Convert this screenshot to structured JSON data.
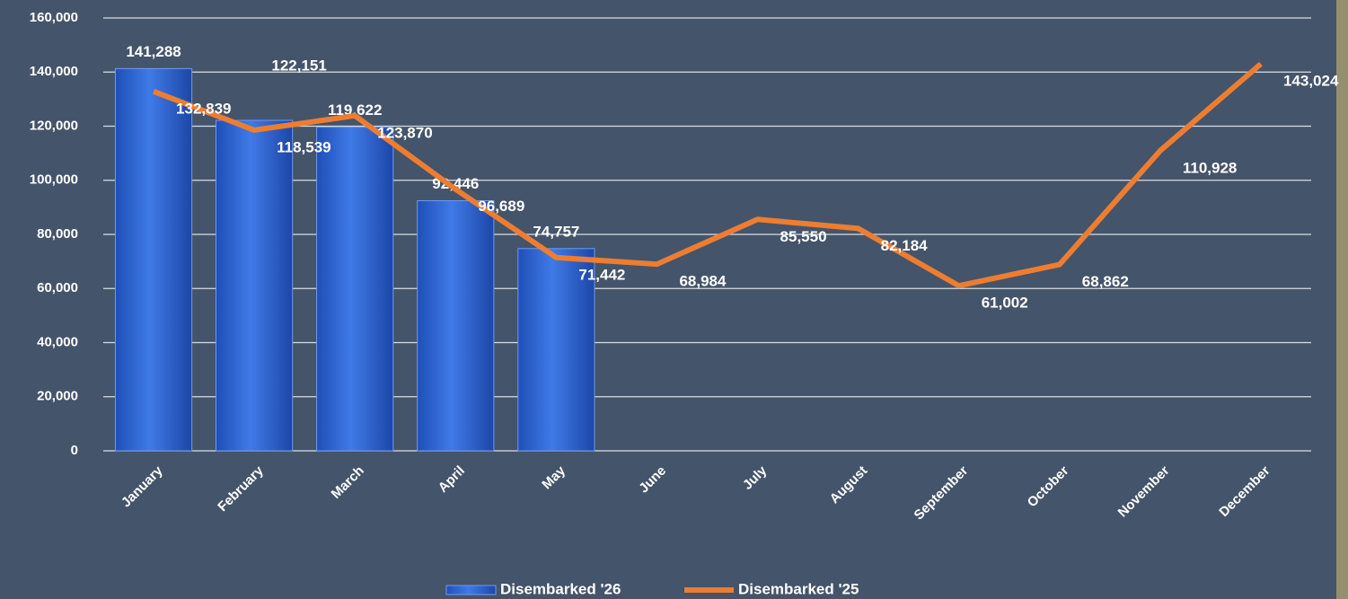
{
  "chart_data": {
    "type": "bar",
    "categories": [
      "January",
      "February",
      "March",
      "April",
      "May",
      "June",
      "July",
      "August",
      "September",
      "October",
      "November",
      "December"
    ],
    "series": [
      {
        "name": "Disembarked '26",
        "type": "bar",
        "color": "#3a70dc",
        "values": [
          141288,
          122151,
          119622,
          92446,
          74757,
          null,
          null,
          null,
          null,
          null,
          null,
          null
        ],
        "value_labels": [
          "141,288",
          "122,151",
          "119,622",
          "92,446",
          "74,757",
          null,
          null,
          null,
          null,
          null,
          null,
          null
        ]
      },
      {
        "name": "Disembarked '25",
        "type": "line",
        "color": "#ed7d31",
        "values": [
          132839,
          118539,
          123870,
          96689,
          71442,
          68984,
          85550,
          82184,
          61002,
          68862,
          110928,
          143024
        ],
        "value_labels": [
          "132,839",
          "118,539",
          "123,870",
          "96,689",
          "71,442",
          "68,984",
          "85,550",
          "82,184",
          "61,002",
          "68,862",
          "110,928",
          "143,024"
        ]
      }
    ],
    "ylim": [
      0,
      160000
    ],
    "yticks": [
      0,
      {
        "value": 20000,
        "label": "20,000"
      },
      {
        "value": 40000,
        "label": "40,000"
      },
      {
        "value": 60000,
        "label": "60,000"
      },
      {
        "value": 80000,
        "label": "80,000"
      },
      {
        "value": 100000,
        "label": "100,000"
      },
      {
        "value": 120000,
        "label": "120,000"
      },
      {
        "value": 140000,
        "label": "140,000"
      },
      {
        "value": 160000,
        "label": "160,000"
      }
    ],
    "grid": true
  }
}
